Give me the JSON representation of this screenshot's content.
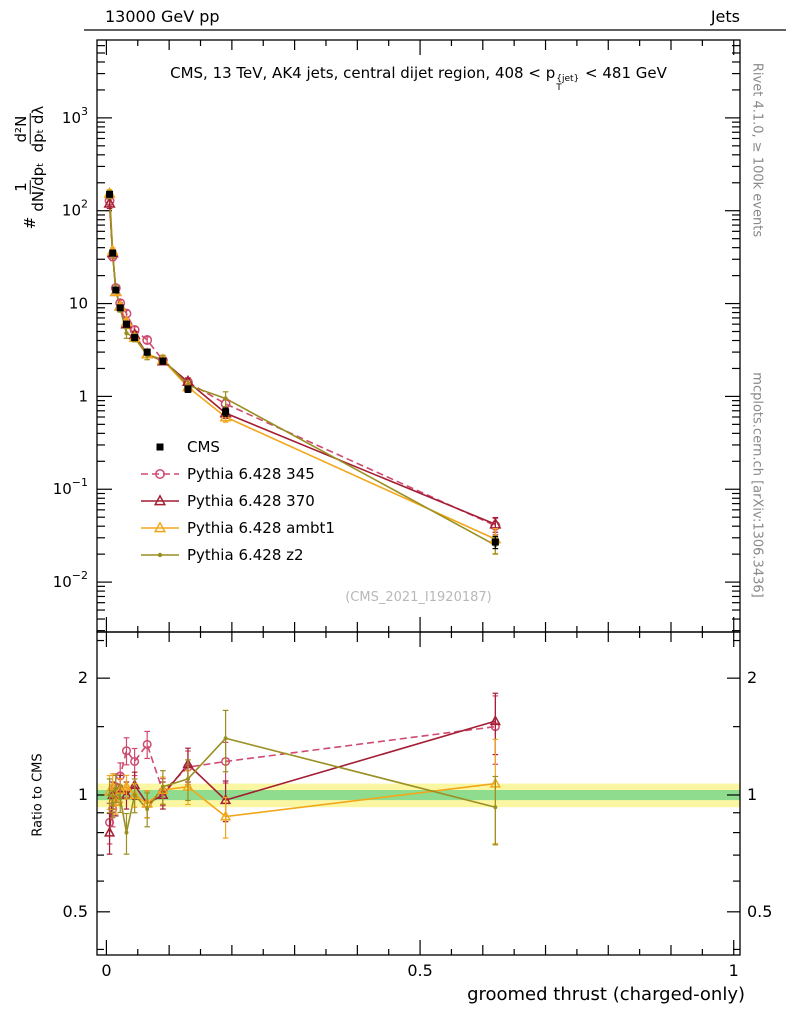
{
  "header": {
    "left": "13000 GeV pp",
    "right": "Jets"
  },
  "title": {
    "pre": "CMS, 13 TeV, AK4 jets, central dijet region, 408 < p",
    "sup": "{jet}",
    "sub": "T",
    "post": "< 481 GeV"
  },
  "ylabel": {
    "hash": "#",
    "frac1_num": "1",
    "frac1_den": "dN/dpₜ",
    "frac2_num": "d²N",
    "frac2_den": "dpₜ dλ"
  },
  "ratio_label": "Ratio to CMS",
  "xlabel": "groomed thrust (charged-only)",
  "watermark": "(CMS_2021_I1920187)",
  "right_labels": {
    "top": "Rivet 4.1.0, ≥ 100k events",
    "bottom": "mcplots.cern.ch [arXiv:1306.3436]"
  },
  "legend": {
    "items": [
      "CMS",
      "Pythia 6.428 345",
      "Pythia 6.428 370",
      "Pythia 6.428 ambt1",
      "Pythia 6.428 z2"
    ]
  },
  "chart_data": {
    "type": "line",
    "title": "CMS, 13 TeV, AK4 jets, central dijet region, 408 < pT{jet} < 481 GeV",
    "xlabel": "groomed thrust (charged-only)",
    "ylabel": "# 1/(dN/dpT) d²N/(dpT dλ)",
    "ratio_ylabel": "Ratio to CMS",
    "legend_position": "middle-left",
    "grid": false,
    "x": [
      0.005,
      0.01,
      0.015,
      0.022,
      0.032,
      0.045,
      0.065,
      0.09,
      0.13,
      0.19,
      0.62
    ],
    "axes": {
      "x": {
        "lim": [
          0,
          1
        ],
        "major": [
          0,
          0.5,
          1
        ],
        "labels": [
          "0",
          "0.5",
          "1"
        ],
        "minor_step": 0.05
      },
      "y_top": {
        "scale": "log",
        "lim": [
          0.0029,
          6900
        ],
        "decades": [
          -2,
          -1,
          0,
          1,
          2,
          3
        ]
      },
      "y_ratio": {
        "scale": "log",
        "lim": [
          0.387,
          2.63
        ],
        "major": [
          0.5,
          1,
          2
        ],
        "labels": [
          "0.5",
          "1",
          "2"
        ],
        "minor": [
          0.4,
          0.6,
          0.7,
          0.8,
          0.9,
          1.5,
          2.5
        ]
      }
    },
    "bands": {
      "yellow": [
        0.93,
        1.07
      ],
      "yellow_color": "#fbf6a2",
      "green": [
        0.97,
        1.03
      ],
      "green_color": "#8fdc8f"
    },
    "series": [
      {
        "name": "CMS",
        "color": "#000000",
        "line": "none",
        "marker": "square-filled",
        "values": [
          150,
          35,
          14,
          9.0,
          6.0,
          4.3,
          3.0,
          2.4,
          1.2,
          0.68,
          0.027
        ],
        "rel_err": [
          0.06,
          0.05,
          0.05,
          0.05,
          0.06,
          0.06,
          0.07,
          0.07,
          0.08,
          0.1,
          0.15
        ]
      },
      {
        "name": "Pythia 6.428 345",
        "color": "#cf4a70",
        "line": "dashed",
        "marker": "circle-open",
        "values": [
          128,
          32.2,
          14.7,
          10.1,
          7.8,
          5.2,
          4.05,
          2.45,
          1.42,
          0.83,
          0.0405
        ],
        "rel_err": [
          0.12,
          0.1,
          0.08,
          0.08,
          0.08,
          0.08,
          0.08,
          0.08,
          0.1,
          0.12,
          0.2
        ],
        "ratio": [
          0.85,
          0.92,
          1.05,
          1.12,
          1.3,
          1.22,
          1.35,
          1.02,
          1.18,
          1.22,
          1.5
        ]
      },
      {
        "name": "Pythia 6.428 370",
        "color": "#a31e33",
        "line": "solid",
        "marker": "triangle-open",
        "values": [
          120,
          35,
          13.4,
          9.4,
          6.0,
          4.6,
          2.85,
          2.4,
          1.44,
          0.66,
          0.042
        ],
        "rel_err": [
          0.12,
          0.08,
          0.08,
          0.08,
          0.08,
          0.08,
          0.08,
          0.08,
          0.1,
          0.12,
          0.18
        ],
        "ratio": [
          0.8,
          1.0,
          0.96,
          1.04,
          1.0,
          1.06,
          0.95,
          1.0,
          1.2,
          0.97,
          1.55
        ]
      },
      {
        "name": "Pythia 6.428 ambt1",
        "color": "#f2a71b",
        "line": "solid",
        "marker": "triangle-open",
        "values": [
          153,
          36.8,
          13.4,
          9.3,
          6.3,
          4.3,
          2.85,
          2.47,
          1.26,
          0.6,
          0.029
        ],
        "rel_err": [
          0.1,
          0.08,
          0.07,
          0.07,
          0.07,
          0.07,
          0.08,
          0.08,
          0.1,
          0.12,
          0.3
        ],
        "ratio": [
          1.02,
          1.05,
          0.96,
          1.03,
          1.05,
          1.0,
          0.95,
          1.03,
          1.05,
          0.88,
          1.07
        ]
      },
      {
        "name": "Pythia 6.428 z2",
        "color": "#9a8f21",
        "line": "solid",
        "marker": "dot",
        "values": [
          150,
          33.3,
          14.6,
          8.8,
          4.8,
          4.3,
          2.76,
          2.52,
          1.32,
          0.95,
          0.025
        ],
        "rel_err": [
          0.1,
          0.08,
          0.08,
          0.08,
          0.12,
          0.1,
          0.1,
          0.1,
          0.12,
          0.18,
          0.2
        ],
        "ratio": [
          1.0,
          0.95,
          1.04,
          0.98,
          0.8,
          1.0,
          0.92,
          1.05,
          1.1,
          1.4,
          0.93
        ]
      }
    ]
  }
}
